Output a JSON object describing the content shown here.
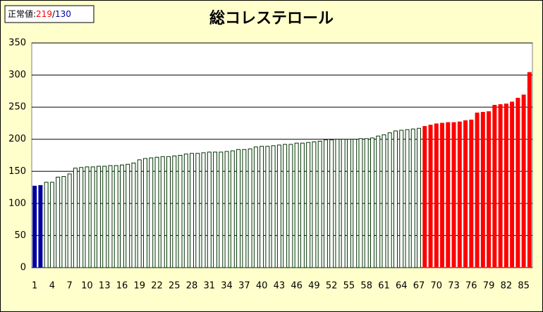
{
  "chart_data": {
    "type": "bar",
    "title": "総コレステロール",
    "legend": {
      "label": "正常値:",
      "upper": 219,
      "separator": "/",
      "lower": 130
    },
    "high_color": "#ff0000",
    "low_color": "#0000a0",
    "normal_color": "#ffffff",
    "normal_stroke": "#003300",
    "categories": [
      "1",
      null,
      null,
      "4",
      null,
      null,
      "7",
      null,
      null,
      "10",
      null,
      null,
      "13",
      null,
      null,
      "16",
      null,
      null,
      "19",
      null,
      null,
      "22",
      null,
      null,
      "25",
      null,
      null,
      "28",
      null,
      null,
      "31",
      null,
      null,
      "34",
      null,
      null,
      "37",
      null,
      null,
      "40",
      null,
      null,
      "43",
      null,
      null,
      "46",
      null,
      null,
      "49",
      null,
      null,
      "52",
      null,
      null,
      "55",
      null,
      null,
      "58",
      null,
      null,
      "61",
      null,
      null,
      "64",
      null,
      null,
      "67",
      null,
      null,
      "70",
      null,
      null,
      "73",
      null,
      null,
      "76",
      null,
      null,
      "79",
      null,
      null,
      "82",
      null,
      null,
      "85",
      null
    ],
    "values": [
      127,
      128,
      133,
      133,
      141,
      142,
      146,
      155,
      156,
      157,
      157,
      158,
      158,
      159,
      159,
      160,
      161,
      163,
      168,
      170,
      171,
      172,
      173,
      173,
      174,
      175,
      177,
      178,
      178,
      179,
      180,
      180,
      180,
      181,
      182,
      184,
      184,
      185,
      188,
      189,
      189,
      190,
      191,
      192,
      192,
      194,
      194,
      195,
      196,
      197,
      199,
      199,
      200,
      200,
      200,
      200,
      201,
      201,
      202,
      205,
      207,
      210,
      213,
      214,
      215,
      216,
      217,
      220,
      222,
      224,
      225,
      226,
      226,
      227,
      229,
      230,
      241,
      242,
      243,
      253,
      254,
      255,
      258,
      264,
      269,
      304
    ],
    "ylim": [
      0,
      350
    ],
    "yticks": [
      0,
      50,
      100,
      150,
      200,
      250,
      300,
      350
    ],
    "grid": true
  }
}
